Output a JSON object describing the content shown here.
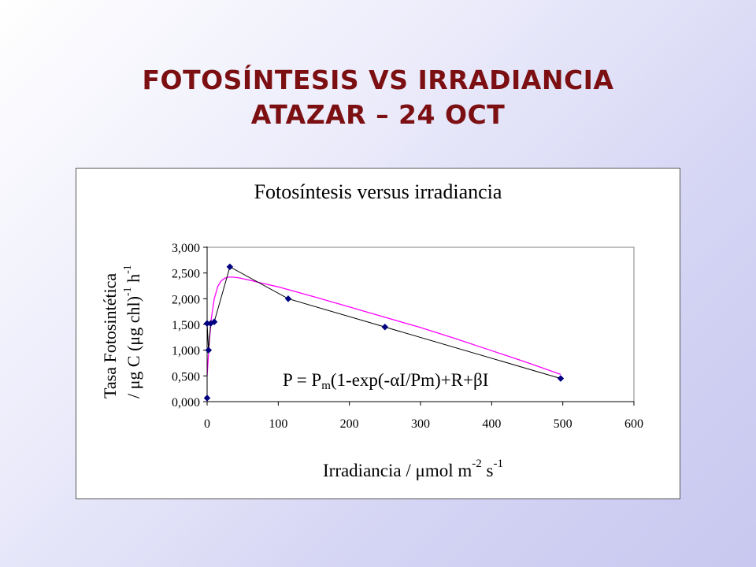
{
  "slide": {
    "title_line1": "FOTOSÍNTESIS VS IRRADIANCIA",
    "title_line2": "ATAZAR – 24 OCT",
    "title_color": "#7b0f12"
  },
  "chart_data": {
    "type": "scatter",
    "title": "Fotosíntesis versus irradiancia",
    "xlabel": {
      "text": "Irradiancia / ",
      "mu": "μ",
      "unit": "mol m",
      "exp1": "-2",
      "unit2": " s",
      "exp2": "-1"
    },
    "ylabel": {
      "line1": "Tasa Fotosintética",
      "line2_a": "/ ",
      "mu": "μ",
      "line2_b": "g C (",
      "line2_c": "g chl)",
      "exp1": "-1",
      "line2_d": " h",
      "exp2": "-1"
    },
    "xlim": [
      0,
      600
    ],
    "ylim": [
      0,
      3
    ],
    "x_ticks": [
      0,
      100,
      200,
      300,
      400,
      500,
      600
    ],
    "y_ticks": [
      {
        "value": 0,
        "label": "0,000"
      },
      {
        "value": 0.5,
        "label": "0,500"
      },
      {
        "value": 1.0,
        "label": "1,000"
      },
      {
        "value": 1.5,
        "label": "1,500"
      },
      {
        "value": 2.0,
        "label": "2,000"
      },
      {
        "value": 2.5,
        "label": "2,500"
      },
      {
        "value": 3.0,
        "label": "3,000"
      }
    ],
    "grid": false,
    "series": [
      {
        "kind": "measured",
        "color": "#000080",
        "marker": "diamond",
        "x": [
          0,
          0,
          2,
          5,
          10,
          32,
          114,
          250,
          497
        ],
        "y": [
          0.07,
          1.52,
          1.0,
          1.52,
          1.55,
          2.62,
          2.0,
          1.45,
          0.45
        ]
      },
      {
        "kind": "fit",
        "color": "#ff00ff",
        "x": [
          0,
          3,
          6,
          10,
          15,
          20,
          25,
          30,
          35,
          40,
          45,
          50,
          60,
          75,
          100,
          150,
          200,
          250,
          300,
          350,
          400,
          450,
          497
        ],
        "y": [
          0.5,
          1.15,
          1.62,
          2.0,
          2.24,
          2.35,
          2.4,
          2.42,
          2.42,
          2.415,
          2.405,
          2.39,
          2.36,
          2.31,
          2.23,
          2.04,
          1.84,
          1.64,
          1.44,
          1.22,
          0.99,
          0.76,
          0.53
        ]
      }
    ],
    "equation": {
      "p1": "P = P",
      "sub": "m",
      "p2": "(1-exp(-",
      "alpha": "α",
      "p3": "I/Pm)+R+",
      "beta": "β",
      "p4": "I"
    }
  }
}
